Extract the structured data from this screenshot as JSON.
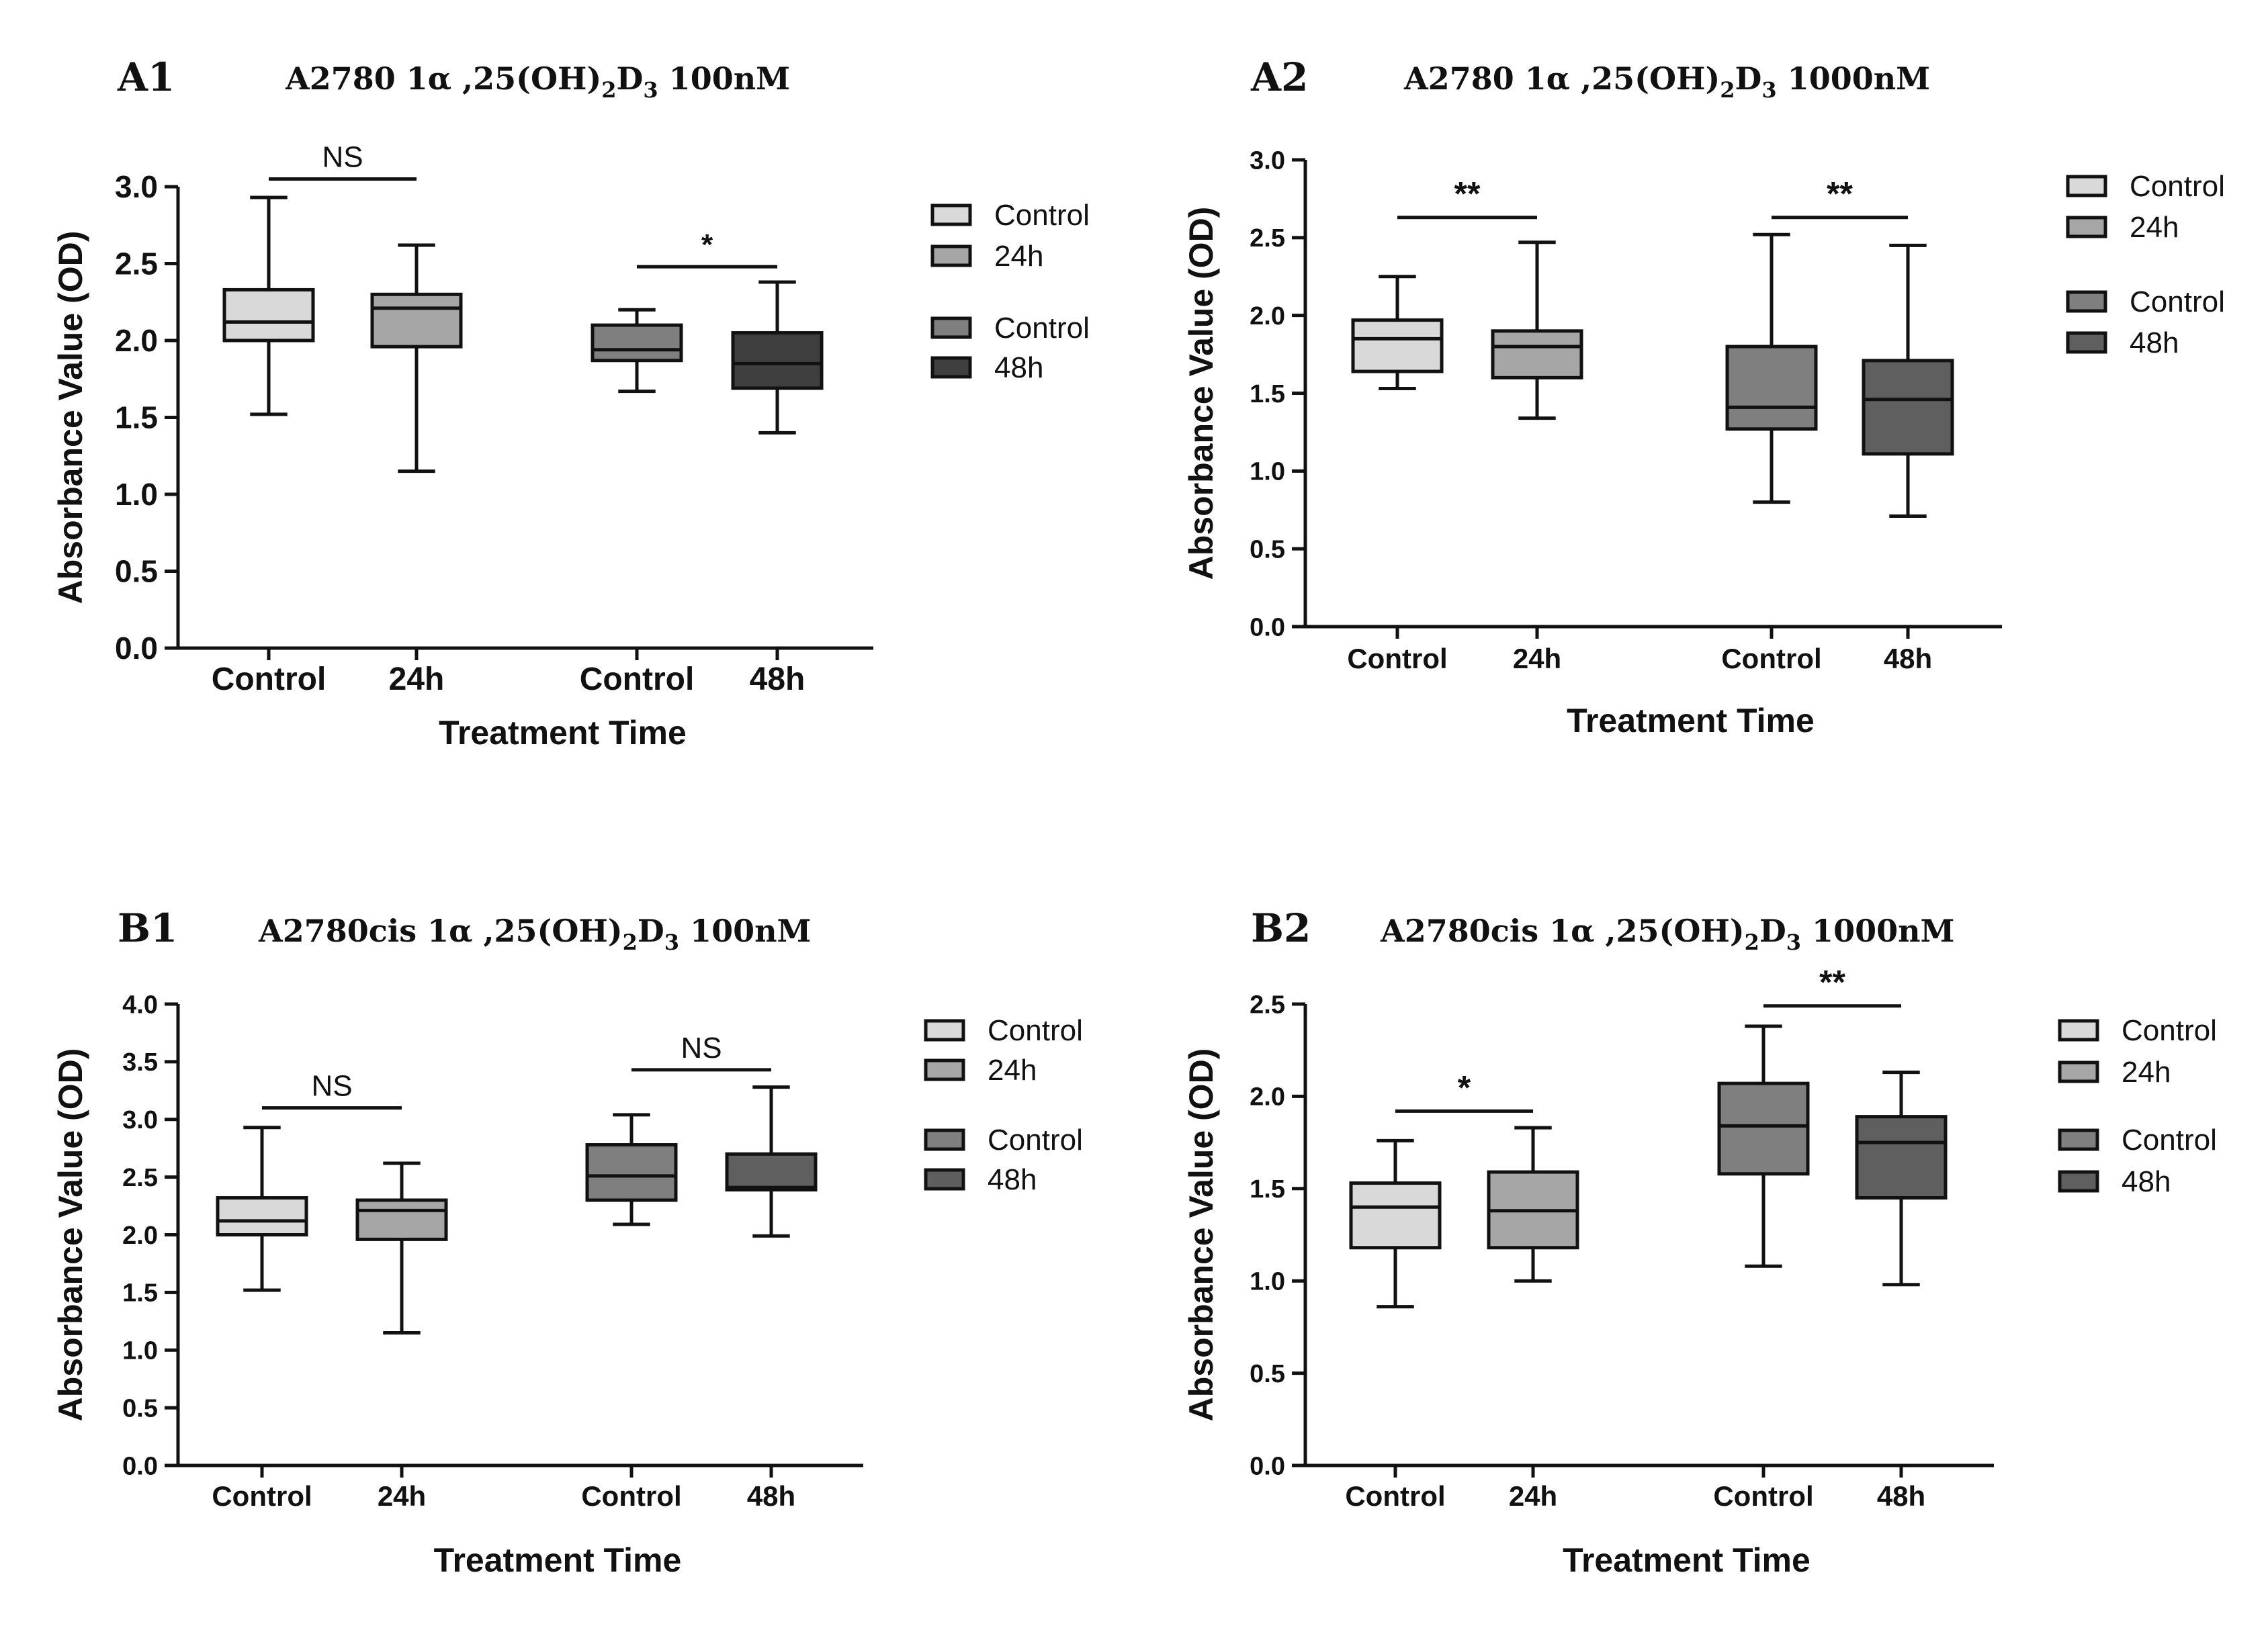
{
  "chart_data": [
    {
      "type": "box",
      "panel_label": "A1",
      "title": {
        "pre": "A2780 1α ,25(OH)",
        "sub1": "2",
        "mid": "D",
        "sub2": "3",
        "post": " 100nM"
      },
      "xlabel": "Treatment Time",
      "ylabel": "Absorbance Value (OD)",
      "ylim": [
        0,
        3.0
      ],
      "yticks": [
        "0.0",
        "0.5",
        "1.0",
        "1.5",
        "2.0",
        "2.5",
        "3.0"
      ],
      "categories": [
        "Control",
        "24h",
        "Control",
        "48h"
      ],
      "boxes": [
        {
          "min": 1.52,
          "q1": 2.0,
          "median": 2.12,
          "q3": 2.33,
          "max": 2.93,
          "color": "#d9d9d9"
        },
        {
          "min": 1.15,
          "q1": 1.96,
          "median": 2.21,
          "q3": 2.3,
          "max": 2.62,
          "color": "#a6a6a6"
        },
        {
          "min": 1.67,
          "q1": 1.87,
          "median": 1.94,
          "q3": 2.1,
          "max": 2.2,
          "color": "#7f7f7f"
        },
        {
          "min": 1.4,
          "q1": 1.69,
          "median": 1.85,
          "q3": 2.05,
          "max": 2.38,
          "color": "#3f3f3f"
        }
      ],
      "significance": [
        {
          "from": 0,
          "to": 1,
          "label": "NS",
          "y": 3.05
        },
        {
          "from": 2,
          "to": 3,
          "label": "*",
          "y": 2.48
        }
      ],
      "legend": [
        {
          "label": "Control",
          "color": "#d9d9d9"
        },
        {
          "label": "24h",
          "color": "#a6a6a6"
        },
        {
          "label": "Control",
          "color": "#7f7f7f"
        },
        {
          "label": "48h",
          "color": "#3f3f3f"
        }
      ]
    },
    {
      "type": "box",
      "panel_label": "A2",
      "title": {
        "pre": "A2780 1α ,25(OH)",
        "sub1": "2",
        "mid": "D",
        "sub2": "3",
        "post": " 1000nM"
      },
      "xlabel": "Treatment Time",
      "ylabel": "Absorbance Value (OD)",
      "ylim": [
        0,
        3.0
      ],
      "yticks": [
        "0.0",
        "0.5",
        "1.0",
        "1.5",
        "2.0",
        "2.5",
        "3.0"
      ],
      "categories": [
        "Control",
        "24h",
        "Control",
        "48h"
      ],
      "boxes": [
        {
          "min": 1.53,
          "q1": 1.64,
          "median": 1.85,
          "q3": 1.97,
          "max": 2.25,
          "color": "#d9d9d9"
        },
        {
          "min": 1.34,
          "q1": 1.6,
          "median": 1.8,
          "q3": 1.9,
          "max": 2.47,
          "color": "#a6a6a6"
        },
        {
          "min": 0.8,
          "q1": 1.27,
          "median": 1.41,
          "q3": 1.8,
          "max": 2.52,
          "color": "#7f7f7f"
        },
        {
          "min": 0.71,
          "q1": 1.11,
          "median": 1.46,
          "q3": 1.71,
          "max": 2.45,
          "color": "#5f5f5f"
        }
      ],
      "significance": [
        {
          "from": 0,
          "to": 1,
          "label": "**",
          "y": 2.63
        },
        {
          "from": 2,
          "to": 3,
          "label": "**",
          "y": 2.63
        }
      ],
      "legend": [
        {
          "label": "Control",
          "color": "#d9d9d9"
        },
        {
          "label": "24h",
          "color": "#a6a6a6"
        },
        {
          "label": "Control",
          "color": "#7f7f7f"
        },
        {
          "label": "48h",
          "color": "#5f5f5f"
        }
      ]
    },
    {
      "type": "box",
      "panel_label": "B1",
      "title": {
        "pre": "A2780cis 1α ,25(OH)",
        "sub1": "2",
        "mid": "D",
        "sub2": "3",
        "post": " 100nM"
      },
      "xlabel": "Treatment Time",
      "ylabel": "Absorbance Value (OD)",
      "ylim": [
        0,
        4.0
      ],
      "yticks": [
        "0.0",
        "0.5",
        "1.0",
        "1.5",
        "2.0",
        "2.5",
        "3.0",
        "3.5",
        "4.0"
      ],
      "categories": [
        "Control",
        "24h",
        "Control",
        "48h"
      ],
      "boxes": [
        {
          "min": 1.52,
          "q1": 2.0,
          "median": 2.12,
          "q3": 2.32,
          "max": 2.93,
          "color": "#d9d9d9"
        },
        {
          "min": 1.15,
          "q1": 1.96,
          "median": 2.21,
          "q3": 2.3,
          "max": 2.62,
          "color": "#a6a6a6"
        },
        {
          "min": 2.09,
          "q1": 2.3,
          "median": 2.51,
          "q3": 2.78,
          "max": 3.04,
          "color": "#7f7f7f"
        },
        {
          "min": 1.99,
          "q1": 2.39,
          "median": 2.41,
          "q3": 2.7,
          "max": 3.28,
          "color": "#5f5f5f"
        }
      ],
      "significance": [
        {
          "from": 0,
          "to": 1,
          "label": "NS",
          "y": 3.1
        },
        {
          "from": 2,
          "to": 3,
          "label": "NS",
          "y": 3.43
        }
      ],
      "legend": [
        {
          "label": "Control",
          "color": "#d9d9d9"
        },
        {
          "label": "24h",
          "color": "#a6a6a6"
        },
        {
          "label": "Control",
          "color": "#7f7f7f"
        },
        {
          "label": "48h",
          "color": "#5f5f5f"
        }
      ]
    },
    {
      "type": "box",
      "panel_label": "B2",
      "title": {
        "pre": "A2780cis 1α ,25(OH)",
        "sub1": "2",
        "mid": "D",
        "sub2": "3",
        "post": " 1000nM"
      },
      "xlabel": "Treatment Time",
      "ylabel": "Absorbance Value (OD)",
      "ylim": [
        0,
        2.5
      ],
      "yticks": [
        "0.0",
        "0.5",
        "1.0",
        "1.5",
        "2.0",
        "2.5"
      ],
      "categories": [
        "Control",
        "24h",
        "Control",
        "48h"
      ],
      "boxes": [
        {
          "min": 0.86,
          "q1": 1.18,
          "median": 1.4,
          "q3": 1.53,
          "max": 1.76,
          "color": "#d9d9d9"
        },
        {
          "min": 1.0,
          "q1": 1.18,
          "median": 1.38,
          "q3": 1.59,
          "max": 1.83,
          "color": "#a6a6a6"
        },
        {
          "min": 1.08,
          "q1": 1.58,
          "median": 1.84,
          "q3": 2.07,
          "max": 2.38,
          "color": "#7f7f7f"
        },
        {
          "min": 0.98,
          "q1": 1.45,
          "median": 1.75,
          "q3": 1.89,
          "max": 2.13,
          "color": "#5f5f5f"
        }
      ],
      "significance": [
        {
          "from": 0,
          "to": 1,
          "label": "*",
          "y": 1.92
        },
        {
          "from": 2,
          "to": 3,
          "label": "**",
          "y": 2.49
        }
      ],
      "legend": [
        {
          "label": "Control",
          "color": "#d9d9d9"
        },
        {
          "label": "24h",
          "color": "#a6a6a6"
        },
        {
          "label": "Control",
          "color": "#7f7f7f"
        },
        {
          "label": "48h",
          "color": "#5f5f5f"
        }
      ]
    }
  ]
}
